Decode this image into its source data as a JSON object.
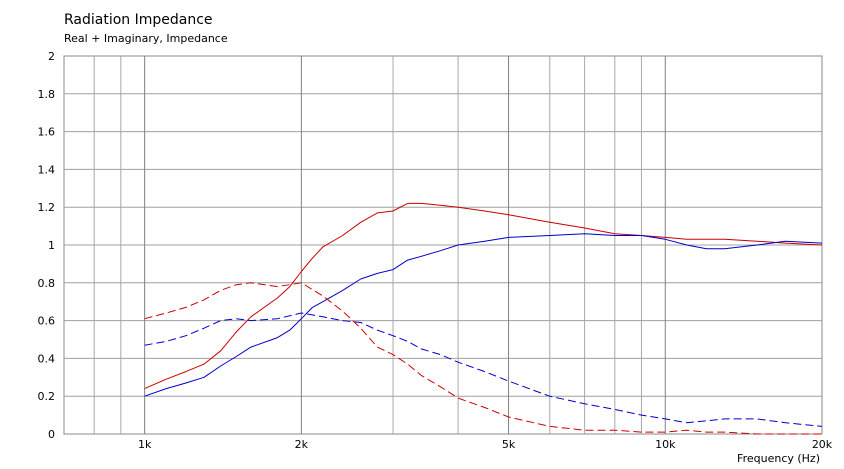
{
  "chart_data": {
    "type": "line",
    "title": "Radiation Impedance",
    "subtitle": "Real + Imaginary, Impedance",
    "xlabel": "Frequency  (Hz)",
    "ylabel": "",
    "xscale": "log",
    "xlim": [
      700,
      20000
    ],
    "ylim": [
      0,
      2
    ],
    "grid": true,
    "y_ticks": [
      0,
      0.2,
      0.4,
      0.6,
      0.8,
      1,
      1.2,
      1.4,
      1.6,
      1.8,
      2
    ],
    "y_tick_labels": [
      "0",
      "0.2",
      "0.4",
      "0.6",
      "0.8",
      "1",
      "1.2",
      "1.4",
      "1.6",
      "1.8",
      "2"
    ],
    "x_ticks": [
      1000,
      2000,
      5000,
      10000,
      20000
    ],
    "x_tick_labels": [
      "1k",
      "2k",
      "5k",
      "10k",
      "20k"
    ],
    "x_gridlines": [
      800,
      900,
      1000,
      2000,
      3000,
      4000,
      5000,
      6000,
      7000,
      8000,
      9000,
      10000,
      20000
    ],
    "colors": {
      "red": "#cc0000",
      "blue": "#0000cc"
    },
    "series": [
      {
        "color": "#cc0000",
        "style": "solid",
        "x": [
          1000,
          1100,
          1200,
          1300,
          1400,
          1500,
          1600,
          1800,
          1900,
          2000,
          2100,
          2200,
          2400,
          2600,
          2800,
          3000,
          3200,
          3400,
          3700,
          4000,
          4500,
          5000,
          6000,
          7000,
          8000,
          9000,
          10000,
          11000,
          12000,
          13000,
          15000,
          17000,
          20000
        ],
        "y": [
          0.24,
          0.29,
          0.33,
          0.37,
          0.44,
          0.54,
          0.62,
          0.72,
          0.78,
          0.86,
          0.93,
          0.99,
          1.05,
          1.12,
          1.17,
          1.18,
          1.22,
          1.22,
          1.21,
          1.2,
          1.18,
          1.16,
          1.12,
          1.09,
          1.06,
          1.05,
          1.04,
          1.03,
          1.03,
          1.03,
          1.02,
          1.01,
          1.0
        ]
      },
      {
        "color": "#0000cc",
        "style": "solid",
        "x": [
          1000,
          1100,
          1200,
          1300,
          1400,
          1500,
          1600,
          1800,
          1900,
          2000,
          2100,
          2200,
          2400,
          2600,
          2800,
          3000,
          3200,
          3400,
          3700,
          4000,
          4500,
          5000,
          6000,
          7000,
          8000,
          9000,
          10000,
          11000,
          12000,
          13000,
          15000,
          17000,
          20000
        ],
        "y": [
          0.2,
          0.24,
          0.27,
          0.3,
          0.36,
          0.41,
          0.46,
          0.51,
          0.55,
          0.61,
          0.67,
          0.7,
          0.76,
          0.82,
          0.85,
          0.87,
          0.92,
          0.94,
          0.97,
          1.0,
          1.02,
          1.04,
          1.05,
          1.06,
          1.05,
          1.05,
          1.03,
          1.0,
          0.98,
          0.98,
          1.0,
          1.02,
          1.01
        ]
      },
      {
        "color": "#cc0000",
        "style": "dashed",
        "x": [
          1000,
          1100,
          1200,
          1300,
          1400,
          1500,
          1600,
          1800,
          2000,
          2200,
          2400,
          2600,
          2800,
          3000,
          3200,
          3400,
          3700,
          4000,
          4500,
          5000,
          6000,
          7000,
          8000,
          9000,
          10000,
          11000,
          12000,
          13000,
          15000,
          17000,
          20000
        ],
        "y": [
          0.61,
          0.64,
          0.67,
          0.71,
          0.76,
          0.79,
          0.8,
          0.78,
          0.8,
          0.73,
          0.65,
          0.56,
          0.46,
          0.42,
          0.37,
          0.31,
          0.25,
          0.19,
          0.14,
          0.09,
          0.04,
          0.02,
          0.02,
          0.01,
          0.01,
          0.02,
          0.01,
          0.01,
          0.0,
          0.0,
          0.0
        ]
      },
      {
        "color": "#0000cc",
        "style": "dashed",
        "x": [
          1000,
          1100,
          1200,
          1300,
          1400,
          1500,
          1600,
          1800,
          2000,
          2200,
          2400,
          2600,
          2800,
          3000,
          3200,
          3400,
          3700,
          4000,
          4500,
          5000,
          6000,
          7000,
          8000,
          9000,
          10000,
          11000,
          12000,
          13000,
          15000,
          17000,
          20000
        ],
        "y": [
          0.47,
          0.49,
          0.52,
          0.56,
          0.6,
          0.61,
          0.6,
          0.61,
          0.64,
          0.62,
          0.6,
          0.59,
          0.55,
          0.52,
          0.49,
          0.45,
          0.42,
          0.38,
          0.33,
          0.28,
          0.2,
          0.16,
          0.13,
          0.1,
          0.08,
          0.06,
          0.07,
          0.08,
          0.08,
          0.06,
          0.04
        ]
      }
    ]
  }
}
